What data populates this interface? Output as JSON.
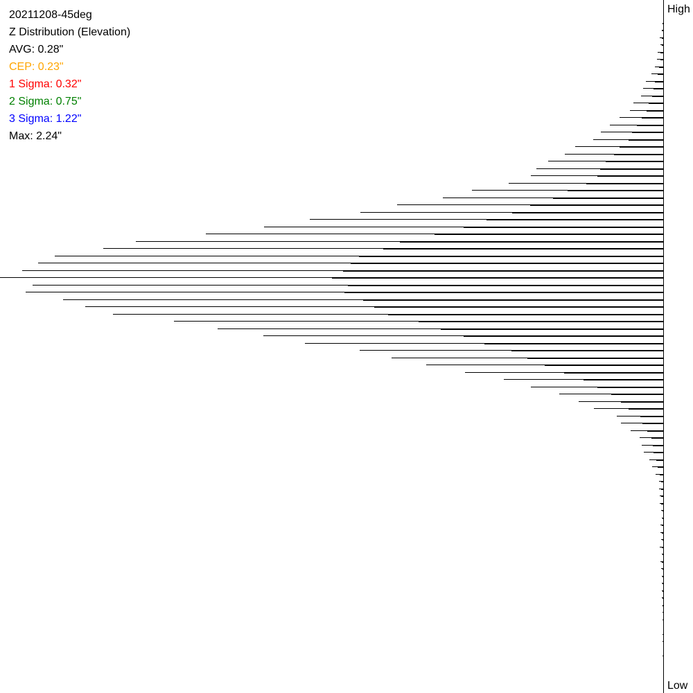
{
  "chart_data": {
    "type": "bar",
    "orientation": "horizontal",
    "title": "20211208-45deg",
    "subtitle": "Z Distribution (Elevation)",
    "axis_top_label": "High",
    "axis_bottom_label": "Low",
    "value_units": "relative count",
    "xlim": [
      0,
      957
    ],
    "bins": 92,
    "series": [
      {
        "name": "outer",
        "values": [
          1,
          2,
          5,
          4,
          8,
          9,
          12,
          17,
          25,
          29,
          32,
          43,
          48,
          63,
          77,
          90,
          101,
          127,
          142,
          166,
          183,
          191,
          223,
          276,
          318,
          384,
          437,
          510,
          576,
          660,
          761,
          808,
          878,
          902,
          925,
          957,
          910,
          920,
          866,
          834,
          794,
          706,
          643,
          577,
          517,
          438,
          392,
          342,
          286,
          230,
          191,
          150,
          122,
          100,
          67,
          61,
          47,
          34,
          31,
          28,
          20,
          16,
          11,
          6,
          6,
          5,
          5,
          3,
          2,
          4,
          4,
          3,
          5,
          2,
          4,
          3,
          2,
          2,
          2,
          2,
          1,
          1,
          1,
          0,
          1,
          1,
          0,
          1,
          0,
          0,
          0,
          0
        ]
      },
      {
        "name": "inner",
        "values": [
          1,
          2,
          2,
          2,
          4,
          4,
          6,
          8,
          12,
          14,
          16,
          21,
          24,
          31,
          38,
          45,
          50,
          63,
          71,
          83,
          91,
          95,
          111,
          138,
          159,
          192,
          218,
          255,
          288,
          330,
          380,
          404,
          439,
          451,
          462,
          478,
          455,
          460,
          433,
          417,
          397,
          353,
          321,
          288,
          258,
          219,
          196,
          171,
          143,
          115,
          95,
          75,
          61,
          50,
          33,
          30,
          23,
          17,
          15,
          14,
          10,
          8,
          5,
          3,
          3,
          3,
          3,
          1,
          1,
          2,
          2,
          1,
          2,
          1,
          2,
          1,
          1,
          1,
          1,
          1,
          1,
          0,
          0,
          0,
          0,
          0,
          0,
          0,
          0,
          0,
          0,
          0
        ]
      }
    ]
  },
  "stats": {
    "title": "20211208-45deg",
    "subtitle": "Z Distribution (Elevation)",
    "avg": "AVG: 0.28\"",
    "cep": "CEP: 0.23\"",
    "sigma1": "1 Sigma: 0.32\"",
    "sigma2": "2 Sigma: 0.75\"",
    "sigma3": "3 Sigma: 1.22\"",
    "max": "Max: 2.24\""
  },
  "colors": {
    "text": "#000000",
    "cep": "#FFA500",
    "sigma1": "#FF0000",
    "sigma2": "#008000",
    "sigma3": "#0000FF",
    "bars": "#000000"
  }
}
